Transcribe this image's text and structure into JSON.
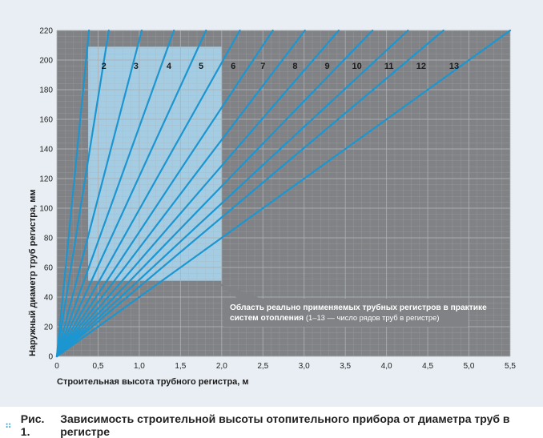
{
  "chart_data": {
    "type": "line",
    "xlabel": "Строительная высота трубного регистра, м",
    "ylabel": "Наружный диаметр труб регистра, мм",
    "xlim": [
      0,
      5.5
    ],
    "ylim": [
      0,
      220
    ],
    "xticks": [
      "0",
      "0,5",
      "1,0",
      "1,5",
      "2,0",
      "2,5",
      "3,0",
      "3,5",
      "4,0",
      "4,5",
      "5,0",
      "5,5"
    ],
    "yticks": [
      "0",
      "20",
      "40",
      "60",
      "80",
      "100",
      "120",
      "140",
      "160",
      "180",
      "200",
      "220"
    ],
    "grid": true,
    "series": [
      {
        "name": "1",
        "points": [
          [
            0,
            0
          ],
          [
            0.39,
            220
          ]
        ]
      },
      {
        "name": "2",
        "points": [
          [
            0,
            0
          ],
          [
            0.63,
            220
          ]
        ]
      },
      {
        "name": "3",
        "points": [
          [
            0,
            0
          ],
          [
            1.03,
            220
          ]
        ]
      },
      {
        "name": "4",
        "points": [
          [
            0,
            0
          ],
          [
            1.42,
            220
          ]
        ]
      },
      {
        "name": "5",
        "points": [
          [
            0,
            0
          ],
          [
            1.81,
            220
          ]
        ]
      },
      {
        "name": "6",
        "points": [
          [
            0,
            0
          ],
          [
            2.22,
            220
          ]
        ]
      },
      {
        "name": "7",
        "points": [
          [
            0,
            0
          ],
          [
            2.62,
            220
          ]
        ]
      },
      {
        "name": "8",
        "points": [
          [
            0,
            0
          ],
          [
            3.01,
            220
          ]
        ]
      },
      {
        "name": "9",
        "points": [
          [
            0,
            0
          ],
          [
            3.42,
            220
          ]
        ]
      },
      {
        "name": "10",
        "points": [
          [
            0,
            0
          ],
          [
            3.83,
            220
          ]
        ]
      },
      {
        "name": "11",
        "points": [
          [
            0,
            0
          ],
          [
            4.26,
            220
          ]
        ]
      },
      {
        "name": "12",
        "points": [
          [
            0,
            0
          ],
          [
            4.69,
            220
          ]
        ]
      },
      {
        "name": "13",
        "points": [
          [
            0,
            0
          ],
          [
            5.5,
            220
          ]
        ]
      }
    ],
    "series_labels": [
      {
        "text": "2",
        "x": 0.57,
        "y": 194
      },
      {
        "text": "3",
        "x": 0.96,
        "y": 194
      },
      {
        "text": "4",
        "x": 1.36,
        "y": 194
      },
      {
        "text": "5",
        "x": 1.75,
        "y": 194
      },
      {
        "text": "6",
        "x": 2.14,
        "y": 194
      },
      {
        "text": "7",
        "x": 2.5,
        "y": 194
      },
      {
        "text": "8",
        "x": 2.89,
        "y": 194
      },
      {
        "text": "9",
        "x": 3.28,
        "y": 194
      },
      {
        "text": "10",
        "x": 3.64,
        "y": 194
      },
      {
        "text": "11",
        "x": 4.03,
        "y": 194
      },
      {
        "text": "12",
        "x": 4.42,
        "y": 194
      },
      {
        "text": "13",
        "x": 4.82,
        "y": 194
      }
    ],
    "highlight_region": {
      "x": [
        0.38,
        2.0
      ],
      "y": [
        51,
        209
      ]
    },
    "annotation": {
      "bold": "Область реально применяемых трубных регистров в практике систем отопления",
      "normal": "(1–13 — число рядов труб в регистре)"
    },
    "colors": {
      "plot_bg": "#808285",
      "grid": "#aeb1b4",
      "line": "#1c96d1",
      "highlight": "#aad9f3",
      "panel_bg": "#e8eef3",
      "annotation_box": "#808285"
    }
  },
  "caption": {
    "figure_number": "Рис. 1.",
    "text": "Зависимость строительной высоты отопительного прибора от диаметра труб в регистре"
  }
}
